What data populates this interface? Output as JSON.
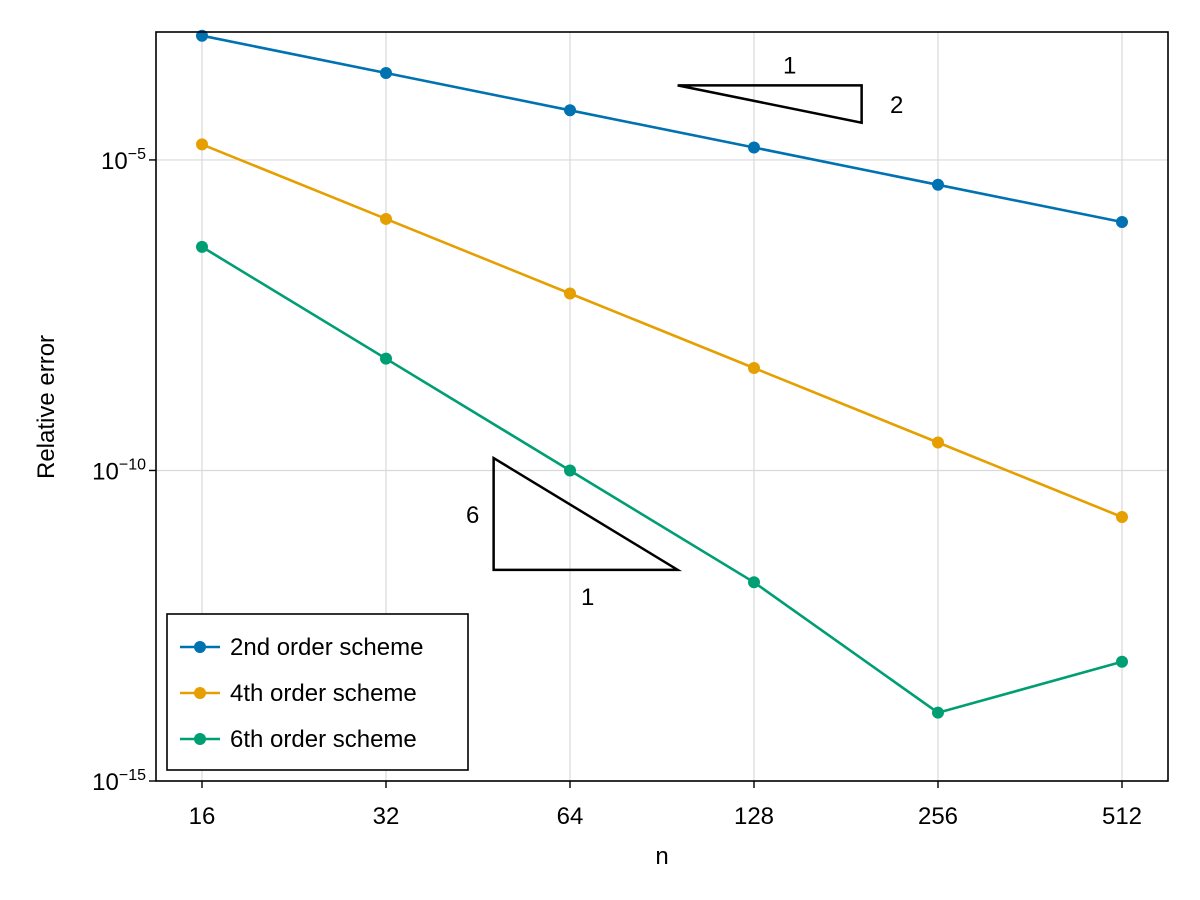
{
  "chart_data": {
    "type": "line",
    "xlabel": "n",
    "ylabel": "Relative error",
    "x_scale": "log2",
    "y_scale": "log10",
    "grid": true,
    "legend_position": "bottom-left",
    "x": [
      16,
      32,
      64,
      128,
      256,
      512
    ],
    "x_ticks": [
      "16",
      "32",
      "64",
      "128",
      "256",
      "512"
    ],
    "ylim_exp": [
      -15,
      -2.94
    ],
    "y_ticks": [
      {
        "base": "10",
        "exp": "−5",
        "value_exp": -5
      },
      {
        "base": "10",
        "exp": "−10",
        "value_exp": -10
      },
      {
        "base": "10",
        "exp": "−15",
        "value_exp": -15
      }
    ],
    "series": [
      {
        "name": "2nd order scheme",
        "color": "#0072b2",
        "log10_values": [
          -3.0,
          -3.6,
          -4.2,
          -4.8,
          -5.4,
          -6.0
        ]
      },
      {
        "name": "4th order scheme",
        "color": "#e69f00",
        "log10_values": [
          -4.75,
          -5.95,
          -7.15,
          -8.35,
          -9.55,
          -10.75
        ]
      },
      {
        "name": "6th order scheme",
        "color": "#009e73",
        "log10_values": [
          -6.4,
          -8.2,
          -10.0,
          -11.8,
          -13.9,
          -13.08
        ]
      }
    ],
    "annotations": [
      {
        "id": "slope-2",
        "side_label": "2",
        "base_label": "1",
        "slope": 2
      },
      {
        "id": "slope-6",
        "side_label": "6",
        "base_label": "1",
        "slope": 6
      }
    ]
  }
}
